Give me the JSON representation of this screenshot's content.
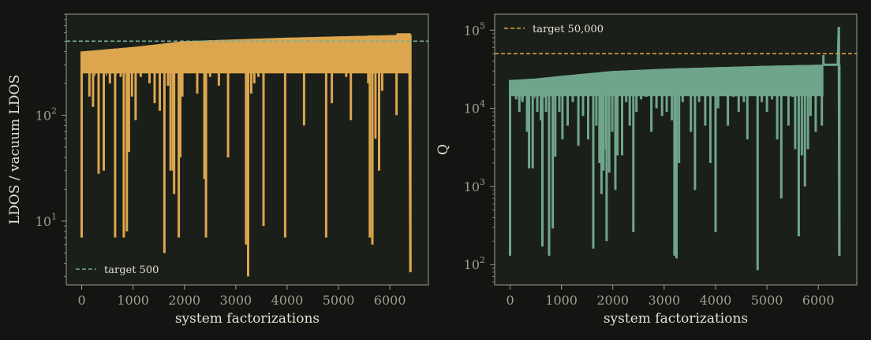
{
  "chart_data": [
    {
      "type": "line",
      "xlabel": "system factorizations",
      "ylabel": "LDOS / vacuum LDOS",
      "yscale": "log",
      "xlim": [
        -300,
        6750
      ],
      "ylim": [
        2.5,
        900
      ],
      "xticks": [
        0,
        1000,
        2000,
        3000,
        4000,
        5000,
        6000
      ],
      "yticks": [
        {
          "value": 10,
          "base": "10",
          "exp": "1"
        },
        {
          "value": 100,
          "base": "10",
          "exp": "2"
        }
      ],
      "series_color": "#dca64e",
      "target": {
        "value": 500,
        "label": "target 500",
        "color": "#78ae98"
      },
      "legend_position": "bottom-left",
      "grid": false,
      "envelope": [
        [
          0,
          400
        ],
        [
          1000,
          440
        ],
        [
          2000,
          500
        ],
        [
          3000,
          520
        ],
        [
          4000,
          540
        ],
        [
          5000,
          555
        ],
        [
          6000,
          570
        ],
        [
          6400,
          580
        ]
      ],
      "spikes": [
        [
          0,
          7
        ],
        [
          150,
          150
        ],
        [
          220,
          120
        ],
        [
          330,
          28
        ],
        [
          430,
          30
        ],
        [
          550,
          200
        ],
        [
          650,
          7
        ],
        [
          760,
          230
        ],
        [
          820,
          7
        ],
        [
          880,
          8
        ],
        [
          920,
          45
        ],
        [
          980,
          150
        ],
        [
          1050,
          90
        ],
        [
          1150,
          230
        ],
        [
          1320,
          200
        ],
        [
          1420,
          130
        ],
        [
          1520,
          110
        ],
        [
          1610,
          5
        ],
        [
          1680,
          190
        ],
        [
          1730,
          30
        ],
        [
          1780,
          30
        ],
        [
          1800,
          18
        ],
        [
          1830,
          300
        ],
        [
          1890,
          7
        ],
        [
          1920,
          40
        ],
        [
          1960,
          150
        ],
        [
          2040,
          300
        ],
        [
          2110,
          280
        ],
        [
          2250,
          160
        ],
        [
          2390,
          25
        ],
        [
          2420,
          7
        ],
        [
          2500,
          230
        ],
        [
          2570,
          300
        ],
        [
          2670,
          190
        ],
        [
          2760,
          350
        ],
        [
          2850,
          40
        ],
        [
          2970,
          300
        ],
        [
          3060,
          330
        ],
        [
          3160,
          270
        ],
        [
          3200,
          6
        ],
        [
          3240,
          3
        ],
        [
          3300,
          160
        ],
        [
          3360,
          200
        ],
        [
          3440,
          230
        ],
        [
          3540,
          9
        ],
        [
          3620,
          300
        ],
        [
          3720,
          300
        ],
        [
          3840,
          350
        ],
        [
          3900,
          400
        ],
        [
          3960,
          7
        ],
        [
          4060,
          370
        ],
        [
          4170,
          250
        ],
        [
          4330,
          80
        ],
        [
          4470,
          400
        ],
        [
          4580,
          250
        ],
        [
          4640,
          400
        ],
        [
          4760,
          7
        ],
        [
          4870,
          130
        ],
        [
          4950,
          400
        ],
        [
          5060,
          300
        ],
        [
          5150,
          230
        ],
        [
          5240,
          90
        ],
        [
          5350,
          300
        ],
        [
          5500,
          400
        ],
        [
          5580,
          200
        ],
        [
          5610,
          7
        ],
        [
          5660,
          6
        ],
        [
          5720,
          60
        ],
        [
          5790,
          30
        ],
        [
          5850,
          170
        ],
        [
          5920,
          260
        ],
        [
          6000,
          480
        ],
        [
          6130,
          100
        ],
        [
          6180,
          560
        ],
        [
          6400,
          3.3
        ]
      ],
      "tail": [
        [
          6130,
          580
        ],
        [
          6380,
          580
        ],
        [
          6400,
          3.3
        ]
      ]
    },
    {
      "type": "line",
      "xlabel": "system factorizations",
      "ylabel": "Q",
      "yscale": "log",
      "xlim": [
        -300,
        6750
      ],
      "ylim": [
        55,
        160000
      ],
      "xticks": [
        0,
        1000,
        2000,
        3000,
        4000,
        5000,
        6000
      ],
      "yticks": [
        {
          "value": 100,
          "base": "10",
          "exp": "2"
        },
        {
          "value": 1000,
          "base": "10",
          "exp": "3"
        },
        {
          "value": 10000,
          "base": "10",
          "exp": "4"
        },
        {
          "value": 100000,
          "base": "10",
          "exp": "5"
        }
      ],
      "series_color": "#6fa68b",
      "target": {
        "value": 50000,
        "label": "target 50,000",
        "color": "#d6a13f"
      },
      "legend_position": "top-left",
      "grid": false,
      "envelope": [
        [
          0,
          23000
        ],
        [
          500,
          24000
        ],
        [
          1000,
          26000
        ],
        [
          1500,
          28000
        ],
        [
          2000,
          30000
        ],
        [
          3000,
          32000
        ],
        [
          4000,
          33500
        ],
        [
          5000,
          35000
        ],
        [
          6000,
          36000
        ],
        [
          6100,
          36000
        ]
      ],
      "spikes": [
        [
          0,
          130
        ],
        [
          60,
          16000
        ],
        [
          120,
          13000
        ],
        [
          180,
          9000
        ],
        [
          240,
          12000
        ],
        [
          330,
          5000
        ],
        [
          370,
          1700
        ],
        [
          440,
          1700
        ],
        [
          530,
          9000
        ],
        [
          600,
          7000
        ],
        [
          630,
          170
        ],
        [
          700,
          9000
        ],
        [
          760,
          130
        ],
        [
          830,
          290
        ],
        [
          880,
          2400
        ],
        [
          960,
          9000
        ],
        [
          1020,
          4000
        ],
        [
          1120,
          6000
        ],
        [
          1220,
          12000
        ],
        [
          1330,
          3300
        ],
        [
          1420,
          8000
        ],
        [
          1520,
          4000
        ],
        [
          1620,
          160
        ],
        [
          1680,
          6000
        ],
        [
          1740,
          2000
        ],
        [
          1780,
          800
        ],
        [
          1820,
          1600
        ],
        [
          1870,
          3000
        ],
        [
          1880,
          200
        ],
        [
          1930,
          1500
        ],
        [
          1990,
          5000
        ],
        [
          2050,
          900
        ],
        [
          2090,
          2500
        ],
        [
          2180,
          2500
        ],
        [
          2260,
          12000
        ],
        [
          2330,
          6000
        ],
        [
          2400,
          260
        ],
        [
          2460,
          9000
        ],
        [
          2550,
          13000
        ],
        [
          2650,
          14000
        ],
        [
          2750,
          5000
        ],
        [
          2850,
          10000
        ],
        [
          2960,
          8000
        ],
        [
          3050,
          9000
        ],
        [
          3150,
          7000
        ],
        [
          3200,
          130
        ],
        [
          3240,
          120
        ],
        [
          3290,
          2000
        ],
        [
          3360,
          12000
        ],
        [
          3420,
          16000
        ],
        [
          3520,
          5000
        ],
        [
          3600,
          900
        ],
        [
          3680,
          12000
        ],
        [
          3740,
          16000
        ],
        [
          3800,
          6000
        ],
        [
          3900,
          2000
        ],
        [
          4000,
          260
        ],
        [
          4050,
          10000
        ],
        [
          4150,
          16000
        ],
        [
          4240,
          6000
        ],
        [
          4350,
          14000
        ],
        [
          4450,
          9000
        ],
        [
          4550,
          12000
        ],
        [
          4620,
          4000
        ],
        [
          4720,
          15000
        ],
        [
          4820,
          85
        ],
        [
          4900,
          12000
        ],
        [
          5000,
          9000
        ],
        [
          5100,
          13000
        ],
        [
          5200,
          4000
        ],
        [
          5280,
          700
        ],
        [
          5350,
          16000
        ],
        [
          5420,
          6000
        ],
        [
          5500,
          14000
        ],
        [
          5550,
          3000
        ],
        [
          5620,
          230
        ],
        [
          5680,
          2500
        ],
        [
          5740,
          1000
        ],
        [
          5800,
          3000
        ],
        [
          5850,
          8000
        ],
        [
          5900,
          15000
        ],
        [
          5950,
          5000
        ],
        [
          6000,
          30000
        ],
        [
          6070,
          6000
        ],
        [
          6100,
          48000
        ],
        [
          6400,
          110000
        ],
        [
          6410,
          130
        ]
      ],
      "tail": [
        [
          6100,
          36000
        ],
        [
          6380,
          36000
        ],
        [
          6400,
          110000
        ],
        [
          6410,
          130
        ]
      ]
    }
  ]
}
